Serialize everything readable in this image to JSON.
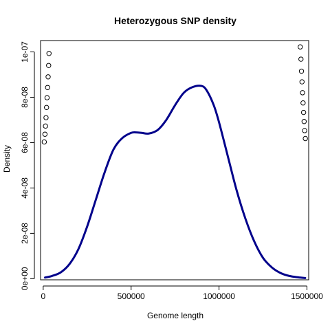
{
  "chart_data": {
    "type": "line",
    "title": "Heterozygous SNP density",
    "xlabel": "Genome length",
    "ylabel": "Density",
    "xlim": [
      -15000,
      1510000
    ],
    "ylim": [
      -5e-10,
      1.05e-07
    ],
    "grid": false,
    "x_ticks": [
      {
        "value": 0,
        "label": "0"
      },
      {
        "value": 500000,
        "label": "500000"
      },
      {
        "value": 1000000,
        "label": "1000000"
      },
      {
        "value": 1500000,
        "label": "1500000"
      }
    ],
    "y_ticks": [
      {
        "value": 0,
        "label": "0e+00"
      },
      {
        "value": 2e-08,
        "label": "2e-08"
      },
      {
        "value": 4e-08,
        "label": "4e-08"
      },
      {
        "value": 6e-08,
        "label": "6e-08"
      },
      {
        "value": 8e-08,
        "label": "8e-08"
      },
      {
        "value": 1e-07,
        "label": "1e-07"
      }
    ],
    "series": [
      {
        "style": "line",
        "color": "#00008b",
        "x": [
          10000,
          50000,
          100000,
          150000,
          200000,
          250000,
          300000,
          350000,
          400000,
          450000,
          500000,
          530000,
          560000,
          600000,
          650000,
          700000,
          750000,
          800000,
          850000,
          900000,
          930000,
          970000,
          1000000,
          1050000,
          1100000,
          1150000,
          1200000,
          1250000,
          1300000,
          1350000,
          1400000,
          1450000,
          1490000
        ],
        "y": [
          5e-10,
          1.2e-09,
          2.8e-09,
          6.5e-09,
          1.3e-08,
          2.3e-08,
          3.5e-08,
          4.7e-08,
          5.7e-08,
          6.2e-08,
          6.43e-08,
          6.45e-08,
          6.43e-08,
          6.4e-08,
          6.55e-08,
          7e-08,
          7.65e-08,
          8.2e-08,
          8.45e-08,
          8.5e-08,
          8.3e-08,
          7.65e-08,
          6.9e-08,
          5.4e-08,
          3.9e-08,
          2.65e-08,
          1.65e-08,
          9.2e-09,
          5e-09,
          2.5e-09,
          1.2e-09,
          6e-10,
          3e-10
        ]
      },
      {
        "style": "points",
        "color": "#000000",
        "x": [
          6000,
          10000,
          13000,
          16000,
          19000,
          22000,
          25000,
          28000,
          31000,
          33000
        ],
        "y": [
          6.03e-08,
          6.37e-08,
          6.73e-08,
          7.1e-08,
          7.55e-08,
          7.98e-08,
          8.43e-08,
          8.9e-08,
          9.4e-08,
          9.93e-08
        ]
      },
      {
        "style": "points",
        "color": "#000000",
        "x": [
          1462000,
          1466000,
          1469000,
          1472000,
          1475000,
          1478000,
          1481000,
          1484000,
          1487000,
          1491000
        ],
        "y": [
          1.022e-07,
          9.68e-08,
          9.15e-08,
          8.68e-08,
          8.2e-08,
          7.75e-08,
          7.33e-08,
          6.93e-08,
          6.53e-08,
          6.18e-08
        ]
      }
    ]
  }
}
